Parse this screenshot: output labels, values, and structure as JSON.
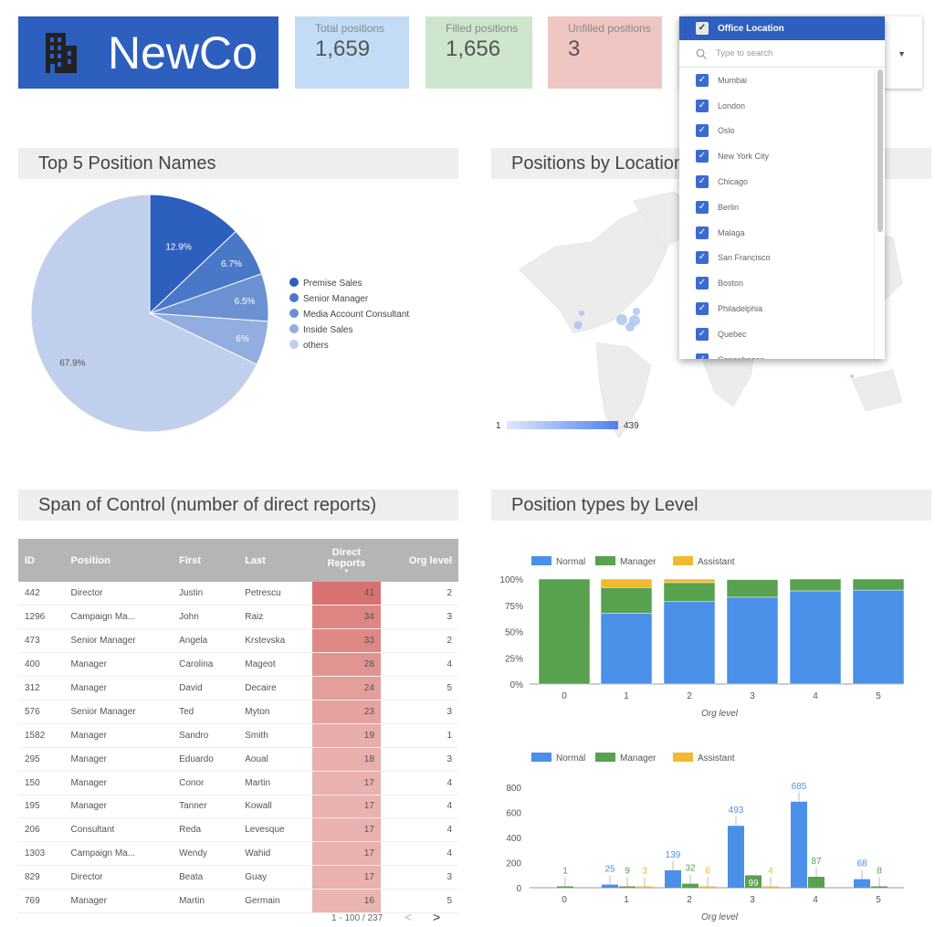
{
  "header": {
    "company": "NewCo",
    "icon": "building-icon"
  },
  "kpis": [
    {
      "label": "Total positions",
      "value": "1,659",
      "color": "#c3dcf5"
    },
    {
      "label": "Filled positions",
      "value": "1,656",
      "color": "#cde6cc"
    },
    {
      "label": "Unfilled positions",
      "value": "3",
      "color": "#efc6c2"
    }
  ],
  "filter": {
    "title": "Office Location",
    "search_placeholder": "Type to search",
    "items": [
      "Mumbai",
      "London",
      "Oslo",
      "New York City",
      "Chicago",
      "Berlin",
      "Malaga",
      "San Francisco",
      "Boston",
      "Philadelphia",
      "Quebec",
      "Copenhagen"
    ]
  },
  "sections": {
    "top5": "Top 5 Position Names",
    "location": "Positions by Location",
    "span": "Span of Control (number of direct reports)",
    "types": "Position types by Level"
  },
  "map": {
    "legend_min": "1",
    "legend_max": "439"
  },
  "chart_data": [
    {
      "type": "pie",
      "title": "Top 5 Position Names",
      "labels": [
        "Premise Sales",
        "Senior Manager",
        "Media Account Consultant",
        "Inside Sales",
        "others"
      ],
      "values": [
        12.9,
        6.7,
        6.5,
        6,
        67.9
      ],
      "value_labels": [
        "12.9%",
        "6.7%",
        "6.5%",
        "6%",
        "67.9%"
      ],
      "colors": [
        "#2d5fbf",
        "#4a78c8",
        "#6c91d3",
        "#92ade0",
        "#c0d0ec"
      ],
      "legend": "right"
    },
    {
      "type": "bar",
      "stacked": true,
      "percent": true,
      "categories": [
        "0",
        "1",
        "2",
        "3",
        "4",
        "5"
      ],
      "xlabel": "Org level",
      "yticks": [
        "0%",
        "25%",
        "50%",
        "75%",
        "100%"
      ],
      "series": [
        {
          "name": "Normal",
          "values": [
            0,
            25,
            139,
            493,
            685,
            68
          ],
          "color": "#4a90e8"
        },
        {
          "name": "Manager",
          "values": [
            1,
            9,
            32,
            99,
            87,
            8
          ],
          "color": "#58a14e"
        },
        {
          "name": "Assistant",
          "values": [
            0,
            3,
            6,
            4,
            0,
            0
          ],
          "color": "#f0b92e"
        }
      ]
    },
    {
      "type": "bar",
      "categories": [
        "0",
        "1",
        "2",
        "3",
        "4",
        "5"
      ],
      "xlabel": "Org level",
      "ylim": [
        0,
        800
      ],
      "yticks": [
        "0",
        "200",
        "400",
        "600",
        "800"
      ],
      "series": [
        {
          "name": "Normal",
          "values": [
            0,
            25,
            139,
            493,
            685,
            68
          ],
          "color": "#4a90e8"
        },
        {
          "name": "Manager",
          "values": [
            1,
            9,
            32,
            99,
            87,
            8
          ],
          "color": "#58a14e"
        },
        {
          "name": "Assistant",
          "values": [
            0,
            3,
            6,
            4,
            0,
            0
          ],
          "color": "#f0b92e"
        }
      ]
    }
  ],
  "table": {
    "columns": [
      "ID",
      "Position",
      "First",
      "Last",
      "Direct Reports",
      "Org level"
    ],
    "rows": [
      [
        "442",
        "Director",
        "Justin",
        "Petrescu",
        "41",
        "2"
      ],
      [
        "1296",
        "Campaign Ma...",
        "John",
        "Raiz",
        "34",
        "3"
      ],
      [
        "473",
        "Senior Manager",
        "Angela",
        "Krstevska",
        "33",
        "2"
      ],
      [
        "400",
        "Manager",
        "Carolina",
        "Mageot",
        "28",
        "4"
      ],
      [
        "312",
        "Manager",
        "David",
        "Decaire",
        "24",
        "5"
      ],
      [
        "576",
        "Senior Manager",
        "Ted",
        "Myton",
        "23",
        "3"
      ],
      [
        "1582",
        "Manager",
        "Sandro",
        "Smith",
        "19",
        "1"
      ],
      [
        "295",
        "Manager",
        "Eduardo",
        "Aoual",
        "18",
        "3"
      ],
      [
        "150",
        "Manager",
        "Conor",
        "Martin",
        "17",
        "4"
      ],
      [
        "195",
        "Manager",
        "Tanner",
        "Kowall",
        "17",
        "4"
      ],
      [
        "206",
        "Consultant",
        "Reda",
        "Levesque",
        "17",
        "4"
      ],
      [
        "1303",
        "Campaign Ma...",
        "Wendy",
        "Wahid",
        "17",
        "4"
      ],
      [
        "829",
        "Director",
        "Beata",
        "Guay",
        "17",
        "3"
      ],
      [
        "769",
        "Manager",
        "Martin",
        "Germain",
        "16",
        "5"
      ]
    ],
    "pagination": "1 - 100 / 237"
  }
}
